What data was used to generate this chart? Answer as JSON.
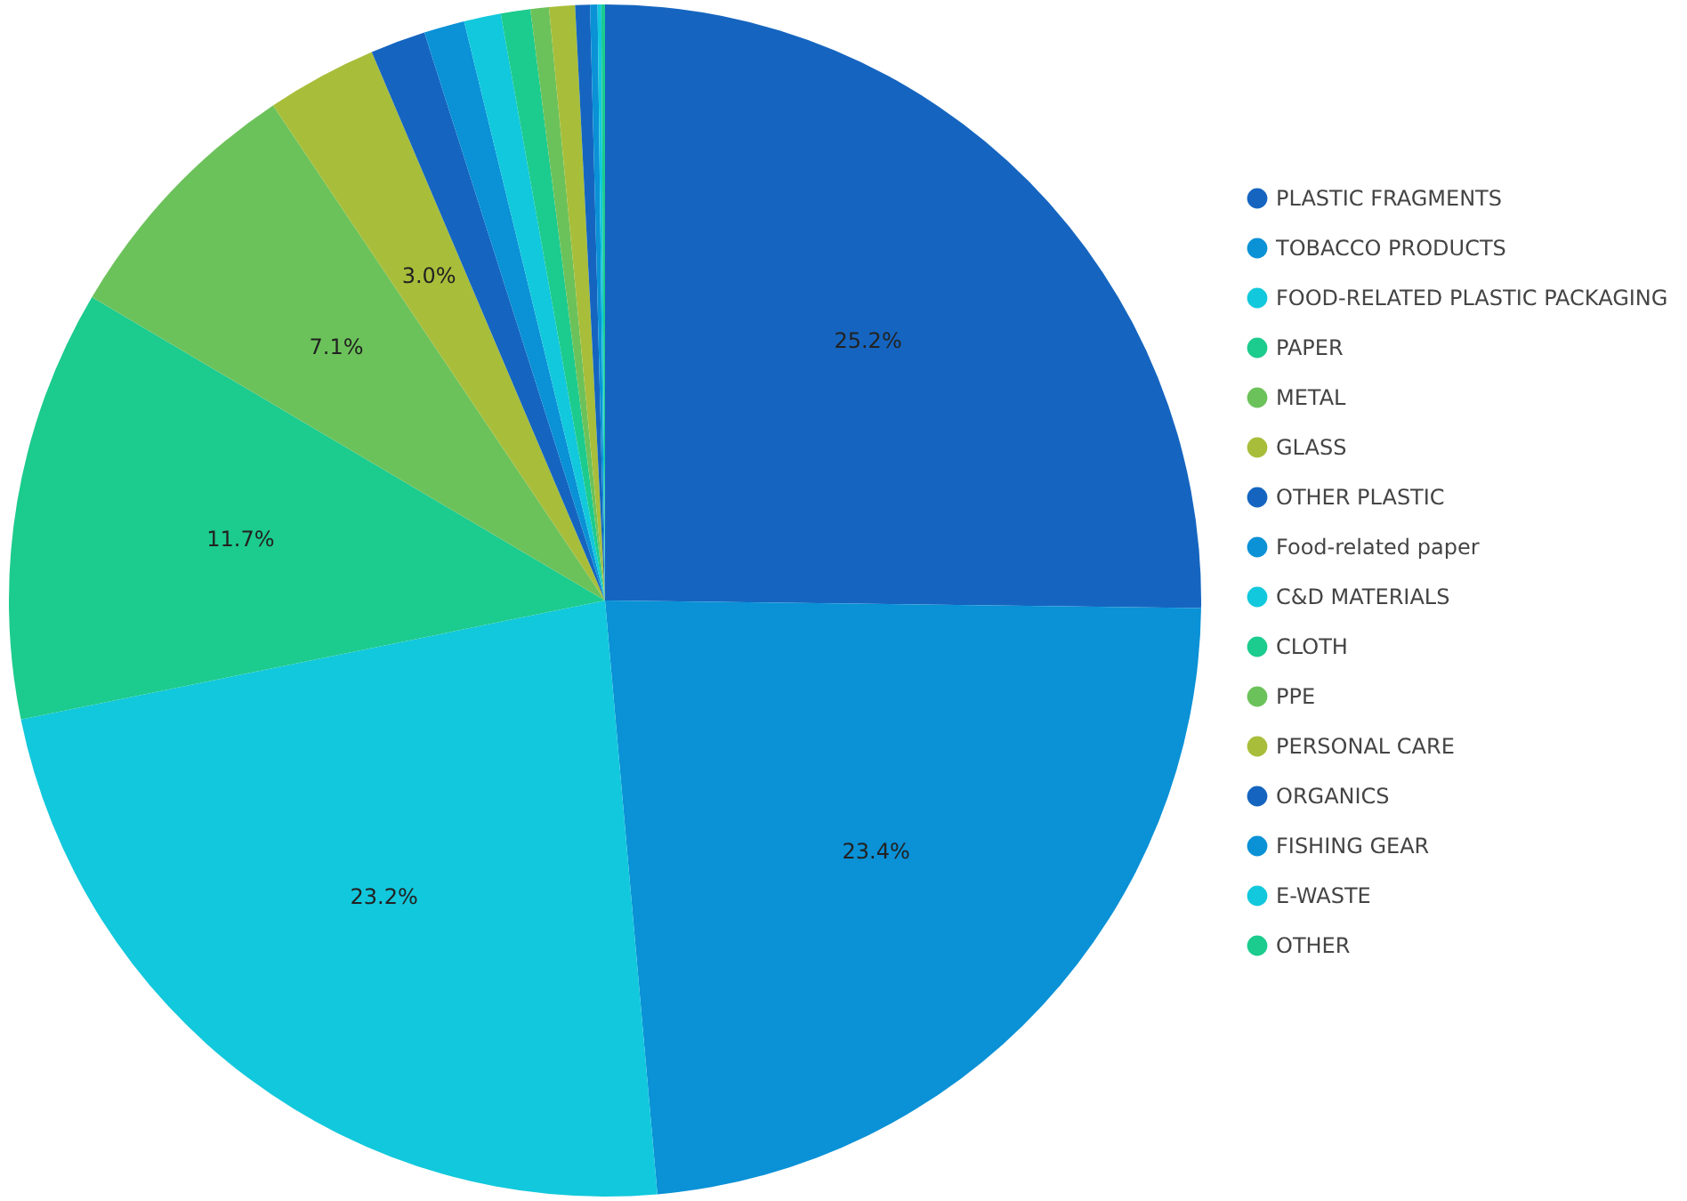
{
  "chart_data": {
    "type": "pie",
    "categories": [
      "PLASTIC FRAGMENTS",
      "TOBACCO PRODUCTS",
      "FOOD-RELATED PLASTIC PACKAGING",
      "PAPER",
      "METAL",
      "GLASS",
      "OTHER PLASTIC",
      "Food-related paper",
      "C&D MATERIALS",
      "CLOTH",
      "PPE",
      "PERSONAL CARE",
      "ORGANICS",
      "FISHING GEAR",
      "E-WASTE",
      "OTHER"
    ],
    "values": [
      25.2,
      23.4,
      23.2,
      11.7,
      7.1,
      3.0,
      1.5,
      1.1,
      1.0,
      0.8,
      0.5,
      0.7,
      0.4,
      0.2,
      0.1,
      0.1
    ],
    "colors": [
      "#1565c0",
      "#0a91d6",
      "#12c8dc",
      "#1ccb8e",
      "#6cc25a",
      "#a8be3a",
      "#1565c0",
      "#0a91d6",
      "#12c8dc",
      "#1ccb8e",
      "#6cc25a",
      "#a8be3a",
      "#1565c0",
      "#0a91d6",
      "#12c8dc",
      "#1ccb8e"
    ],
    "value_labels": [
      "25.2%",
      "23.4%",
      "23.2%",
      "11.7%",
      "7.1%",
      "3.0%",
      null,
      null,
      null,
      null,
      null,
      null,
      null,
      null,
      null,
      null
    ],
    "legend": "right"
  }
}
